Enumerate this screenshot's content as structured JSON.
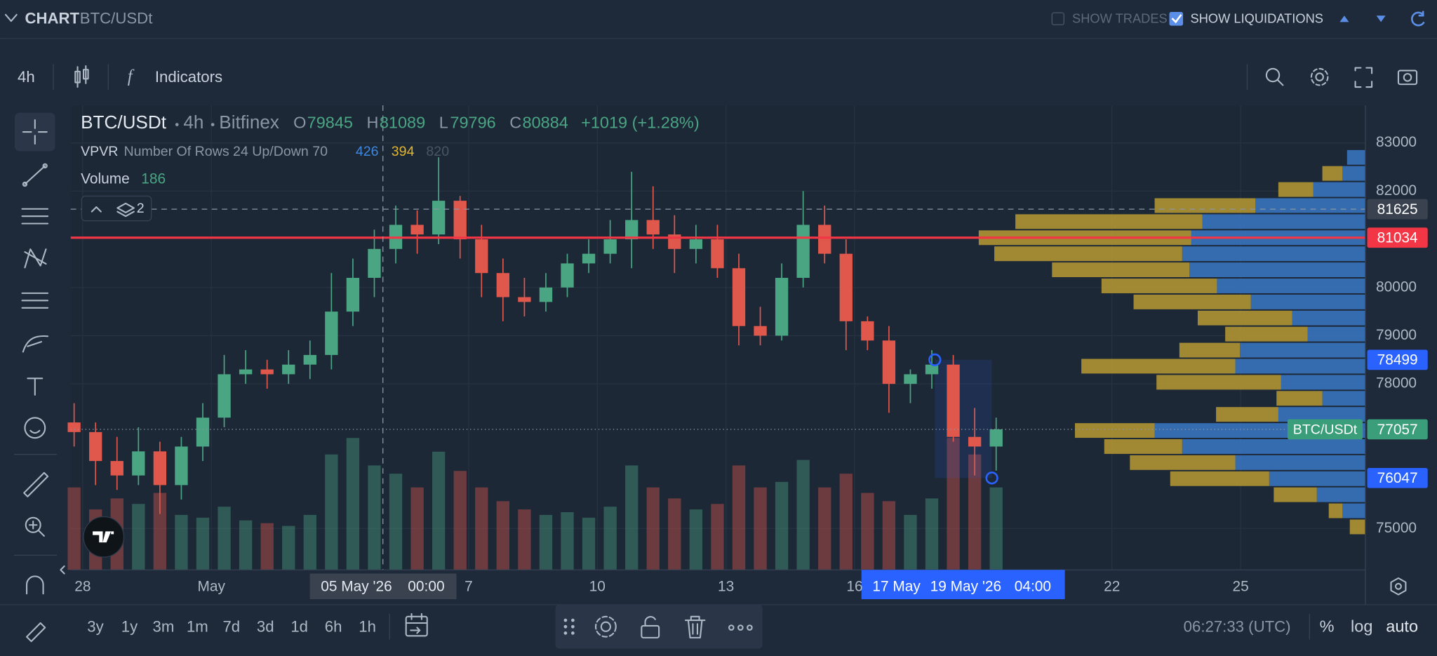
{
  "header": {
    "section": "CHART",
    "symbol": "BTC/USDt",
    "show_trades": "SHOW TRADES",
    "show_liquidations": "SHOW LIQUIDATIONS"
  },
  "toolbar": {
    "interval": "4h",
    "indicators": "Indicators"
  },
  "legend": {
    "symbol": "BTC/USDt",
    "interval": "4h",
    "exchange": "Bitfinex",
    "o_label": "O",
    "open": 79845,
    "h_label": "H",
    "high": 81089,
    "l_label": "L",
    "low": 79796,
    "c_label": "C",
    "close": 80884,
    "change": "+1019 (+1.28%)",
    "vpvr": "VPVR",
    "vpvr_settings": "Number Of Rows 24 Up/Down 70",
    "vpvr_up": 426,
    "vpvr_down": 394,
    "vpvr_total": 820,
    "volume": "Volume",
    "volume_value": 186,
    "layers": 2
  },
  "crosshair": {
    "date": "05 May '26",
    "time": "00:00"
  },
  "range": {
    "start": "17 May",
    "end": "19 May '26",
    "end_time": "04:00"
  },
  "bottom_bar": {
    "ranges": [
      "3y",
      "1y",
      "3m",
      "1m",
      "7d",
      "3d",
      "1d",
      "6h",
      "1h"
    ],
    "clock": "06:27:33 (UTC)",
    "percent": "%",
    "log": "log",
    "auto": "auto"
  },
  "chart_data": {
    "type": "candlestick",
    "up_color": "#4aa583",
    "down_color": "#e0574b",
    "xlim": [
      -0.28,
      29.91
    ],
    "xticks": [
      {
        "value": 0,
        "label": "28"
      },
      {
        "value": 3,
        "label": "May"
      },
      {
        "value": 9,
        "label": "7"
      },
      {
        "value": 12,
        "label": "10"
      },
      {
        "value": 15,
        "label": "13"
      },
      {
        "value": 18,
        "label": "16"
      },
      {
        "value": 24,
        "label": "22"
      },
      {
        "value": 27,
        "label": "25"
      }
    ],
    "ylim": [
      74141,
      83779
    ],
    "yticks": [
      75000,
      78000,
      79000,
      80000,
      82000,
      83000
    ],
    "grid": true,
    "x": [
      -0.2,
      0.3,
      0.8,
      1.3,
      1.8,
      2.3,
      2.8,
      3.3,
      3.8,
      4.3,
      4.8,
      5.3,
      5.8,
      6.3,
      6.8,
      7.3,
      7.8,
      8.3,
      8.8,
      9.3,
      9.8,
      10.3,
      10.8,
      11.3,
      11.8,
      12.3,
      12.8,
      13.3,
      13.8,
      14.3,
      14.8,
      15.3,
      15.8,
      16.3,
      16.8,
      17.3,
      17.8,
      18.3,
      18.8,
      19.3,
      19.8,
      20.3,
      20.8,
      21.3
    ],
    "ohlc": [
      [
        77200,
        77600,
        76700,
        77000
      ],
      [
        77000,
        77200,
        75900,
        76400
      ],
      [
        76400,
        76900,
        75800,
        76100
      ],
      [
        76100,
        77100,
        75900,
        76600
      ],
      [
        76600,
        76800,
        75300,
        75900
      ],
      [
        75900,
        76900,
        75600,
        76700
      ],
      [
        76700,
        77600,
        76400,
        77300
      ],
      [
        77300,
        78600,
        77100,
        78200
      ],
      [
        78200,
        78700,
        78000,
        78300
      ],
      [
        78300,
        78500,
        77900,
        78200
      ],
      [
        78200,
        78700,
        78000,
        78400
      ],
      [
        78400,
        78900,
        78100,
        78600
      ],
      [
        78600,
        80300,
        78300,
        79500
      ],
      [
        79500,
        80600,
        79200,
        80200
      ],
      [
        80200,
        81200,
        79800,
        80800
      ],
      [
        80800,
        81700,
        80500,
        81300
      ],
      [
        81300,
        81600,
        80700,
        81100
      ],
      [
        81100,
        82700,
        80900,
        81800
      ],
      [
        81800,
        81900,
        80600,
        81000
      ],
      [
        81000,
        81300,
        79800,
        80300
      ],
      [
        80300,
        80600,
        79300,
        79800
      ],
      [
        79800,
        80200,
        79400,
        79700
      ],
      [
        79700,
        80300,
        79500,
        80000
      ],
      [
        80000,
        80700,
        79800,
        80500
      ],
      [
        80500,
        81000,
        80300,
        80700
      ],
      [
        80700,
        81400,
        80500,
        81000
      ],
      [
        81000,
        82400,
        80400,
        81400
      ],
      [
        81400,
        82100,
        80800,
        81100
      ],
      [
        81100,
        81500,
        80300,
        80800
      ],
      [
        80800,
        81300,
        80500,
        81000
      ],
      [
        81000,
        81300,
        80200,
        80400
      ],
      [
        80400,
        80700,
        78800,
        79200
      ],
      [
        79200,
        79600,
        78800,
        79000
      ],
      [
        79000,
        80500,
        78900,
        80200
      ],
      [
        80200,
        82000,
        80000,
        81300
      ],
      [
        81300,
        81700,
        80500,
        80700
      ],
      [
        80700,
        81000,
        78700,
        79300
      ],
      [
        79300,
        79400,
        78700,
        78900
      ],
      [
        78900,
        79200,
        77400,
        78000
      ],
      [
        78000,
        78300,
        77600,
        78200
      ],
      [
        78200,
        78700,
        77900,
        78400
      ],
      [
        78400,
        78600,
        76800,
        76900
      ],
      [
        76900,
        77500,
        76100,
        76700
      ],
      [
        76700,
        77300,
        76200,
        77057
      ]
    ],
    "volumes": [
      300,
      220,
      260,
      240,
      280,
      200,
      190,
      230,
      180,
      170,
      160,
      200,
      420,
      480,
      380,
      350,
      300,
      430,
      360,
      300,
      250,
      220,
      200,
      210,
      190,
      230,
      380,
      300,
      260,
      220,
      240,
      380,
      300,
      320,
      400,
      300,
      350,
      280,
      250,
      200,
      260,
      480,
      420,
      300
    ],
    "volume_ylim": [
      0,
      1000
    ],
    "vpvr": {
      "up_color": "#3a78c6",
      "down_color": "#b89a32",
      "xlim": [
        0,
        1413
      ],
      "prices": [
        82700,
        82367,
        82033,
        81700,
        81367,
        81033,
        80700,
        80367,
        80033,
        79700,
        79367,
        79033,
        78700,
        78367,
        78033,
        77700,
        77367,
        77033,
        76700,
        76367,
        76033,
        75700,
        75367,
        75033
      ],
      "up": [
        20,
        25,
        57,
        120,
        178,
        190,
        200,
        192,
        162,
        125,
        80,
        63,
        137,
        142,
        92,
        47,
        95,
        230,
        200,
        142,
        105,
        53,
        25,
        0
      ],
      "down": [
        0,
        22,
        38,
        110,
        204,
        232,
        205,
        150,
        126,
        128,
        103,
        90,
        66,
        168,
        136,
        50,
        68,
        87,
        85,
        115,
        108,
        47,
        15,
        17
      ]
    },
    "hlines": [
      {
        "value": 81625,
        "color": "#8b96a5",
        "dash": "6 5"
      },
      {
        "value": 81034,
        "color": "#f23645",
        "dash": "none"
      },
      {
        "value": 77057,
        "color": "#8b96a5",
        "dash": "1 3"
      }
    ],
    "price_labels": [
      {
        "value": 81625,
        "color": "#3a4250"
      },
      {
        "value": 81034,
        "color": "#f23645"
      },
      {
        "value": 78499,
        "color": "#2962ff"
      },
      {
        "value": 77057,
        "color": "#3a9e7a",
        "name": "BTC/USDt"
      },
      {
        "value": 76047,
        "color": "#2962ff"
      }
    ],
    "crosshair_x": 7,
    "range_x": [
      19.87,
      21.2
    ],
    "range_prices": [
      78499,
      76047
    ]
  }
}
